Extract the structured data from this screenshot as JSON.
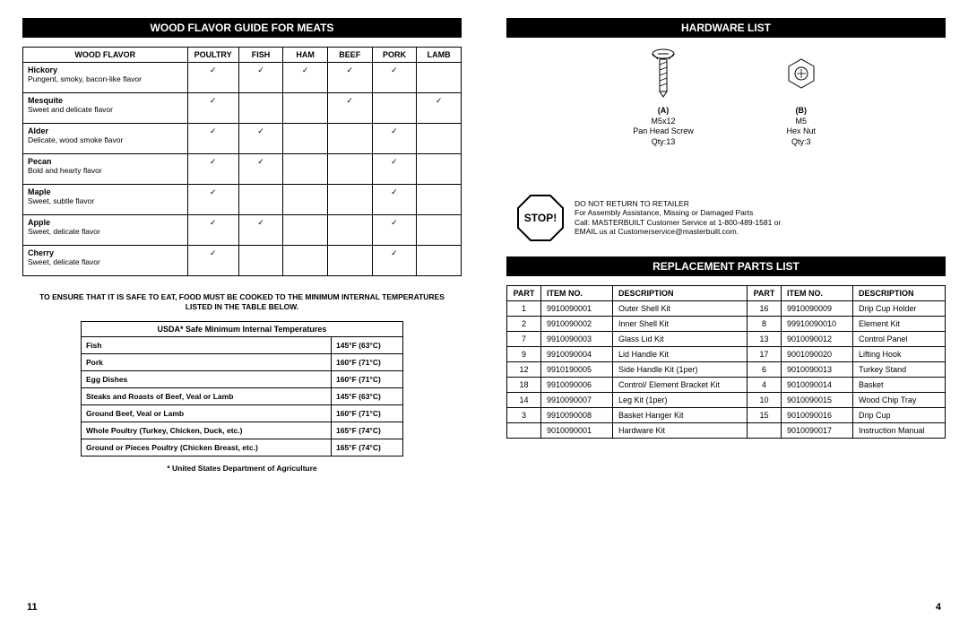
{
  "left": {
    "header": "WOOD FLAVOR GUIDE FOR MEATS",
    "wood_table": {
      "columns": [
        "WOOD FLAVOR",
        "POULTRY",
        "FISH",
        "HAM",
        "BEEF",
        "PORK",
        "LAMB"
      ],
      "rows": [
        {
          "name": "Hickory",
          "desc": "Pungent, smoky, bacon-like flavor",
          "cells": [
            "✓",
            "✓",
            "✓",
            "✓",
            "✓",
            ""
          ]
        },
        {
          "name": "Mesquite",
          "desc": "Sweet and delicate flavor",
          "cells": [
            "✓",
            "",
            "",
            "✓",
            "",
            "✓"
          ]
        },
        {
          "name": "Alder",
          "desc": "Delicate, wood smoke flavor",
          "cells": [
            "✓",
            "✓",
            "",
            "",
            "✓",
            ""
          ]
        },
        {
          "name": "Pecan",
          "desc": "Bold and hearty flavor",
          "cells": [
            "✓",
            "✓",
            "",
            "",
            "✓",
            ""
          ]
        },
        {
          "name": "Maple",
          "desc": "Sweet, subtle flavor",
          "cells": [
            "✓",
            "",
            "",
            "",
            "✓",
            ""
          ]
        },
        {
          "name": "Apple",
          "desc": "Sweet, delicate flavor",
          "cells": [
            "✓",
            "✓",
            "",
            "",
            "✓",
            ""
          ]
        },
        {
          "name": "Cherry",
          "desc": "Sweet, delicate flavor",
          "cells": [
            "✓",
            "",
            "",
            "",
            "✓",
            ""
          ]
        }
      ]
    },
    "safety_note": "TO ENSURE THAT IT IS SAFE TO EAT, FOOD MUST BE COOKED TO THE MINIMUM INTERNAL TEMPERATURES LISTED IN THE TABLE BELOW.",
    "usda_table": {
      "header": "USDA* Safe Minimum Internal Temperatures",
      "rows": [
        [
          "Fish",
          "145°F (63°C)"
        ],
        [
          "Pork",
          "160°F (71°C)"
        ],
        [
          "Egg Dishes",
          "160°F (71°C)"
        ],
        [
          "Steaks and Roasts of Beef, Veal or Lamb",
          "145°F (63°C)"
        ],
        [
          "Ground Beef, Veal or Lamb",
          "160°F (71°C)"
        ],
        [
          "Whole Poultry (Turkey, Chicken, Duck, etc.)",
          "165°F (74°C)"
        ],
        [
          "Ground or Pieces Poultry (Chicken Breast, etc.)",
          "165°F (74°C)"
        ]
      ]
    },
    "footnote": "* United States Department of Agriculture",
    "page_num": "11"
  },
  "right": {
    "hardware_header": "HARDWARE LIST",
    "hw_a": {
      "label": "(A)",
      "spec": "M5x12",
      "name": "Pan Head Screw",
      "qty": "Qty:13"
    },
    "hw_b": {
      "label": "(B)",
      "spec": "M5",
      "name": "Hex Nut",
      "qty": "Qty:3"
    },
    "stop": {
      "label": "STOP!",
      "line1": "DO NOT RETURN TO RETAILER",
      "line2": "For Assembly Assistance, Missing or Damaged Parts",
      "line3": "Call: MASTERBUILT Customer Service at 1-800-489-1581 or",
      "line4": "EMAIL us at Customerservice@masterbuilt.com."
    },
    "parts_header": "REPLACEMENT PARTS LIST",
    "parts_table": {
      "columns": [
        "PART",
        "ITEM NO.",
        "DESCRIPTION",
        "PART",
        "ITEM NO.",
        "DESCRIPTION"
      ],
      "rows": [
        [
          "1",
          "9910090001",
          "Outer Shell Kit",
          "16",
          "9910090009",
          "Drip Cup Holder"
        ],
        [
          "2",
          "9910090002",
          "Inner Shell Kit",
          "8",
          "99910090010",
          "Element Kit"
        ],
        [
          "7",
          "9910090003",
          "Glass Lid Kit",
          "13",
          "9010090012",
          "Control Panel"
        ],
        [
          "9",
          "9910090004",
          "Lid Handle Kit",
          "17",
          "9001090020",
          "Lifting Hook"
        ],
        [
          "12",
          "9910190005",
          "Side Handle Kit (1per)",
          "6",
          "9010090013",
          "Turkey Stand"
        ],
        [
          "18",
          "9910090006",
          "Control/ Element Bracket Kit",
          "4",
          "9010090014",
          "Basket"
        ],
        [
          "14",
          "9910090007",
          "Leg Kit (1per)",
          "10",
          "9010090015",
          "Wood Chip Tray"
        ],
        [
          "3",
          "9910090008",
          "Basket Hanger Kit",
          "15",
          "9010090016",
          "Drip Cup"
        ],
        [
          "",
          "9010090001",
          "Hardware Kit",
          "",
          "9010090017",
          "Instruction Manual"
        ]
      ]
    },
    "page_num": "4"
  }
}
